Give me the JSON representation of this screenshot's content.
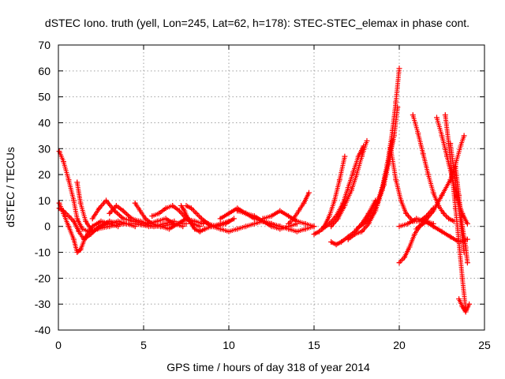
{
  "chart_data": {
    "type": "scatter",
    "title": "dSTEC Iono. truth (yell, Lon=245, Lat=62, h=178): STEC-STEC_elemax in phase cont.",
    "xlabel": "GPS time / hours of day 318 of year 2014",
    "ylabel": "dSTEC  / TECUs",
    "xlim": [
      0,
      25
    ],
    "ylim": [
      -40,
      70
    ],
    "xticks": [
      0,
      5,
      10,
      15,
      20,
      25
    ],
    "yticks": [
      -40,
      -30,
      -20,
      -10,
      0,
      10,
      20,
      30,
      40,
      50,
      60,
      70
    ],
    "grid": true,
    "legend": "none",
    "marker": "plus",
    "color": "#ff0000",
    "series": [
      {
        "x": [
          0.05,
          0.3,
          0.6,
          0.9,
          1.1,
          1.4,
          1.8,
          2.3,
          3.0,
          3.8,
          4.5,
          5.3,
          6.0,
          6.8,
          7.5
        ],
        "y": [
          29,
          25,
          18,
          10,
          3,
          -1,
          -2,
          -1,
          0,
          1,
          1,
          0,
          0,
          1,
          1
        ]
      },
      {
        "x": [
          0.05,
          0.3,
          0.6,
          0.9,
          1.1,
          1.3,
          1.6,
          2.0,
          2.5,
          3.0,
          3.5
        ],
        "y": [
          9,
          5,
          0,
          -5,
          -10,
          -9,
          -4,
          0,
          2,
          1,
          0
        ]
      },
      {
        "x": [
          0.05,
          0.3,
          0.6,
          0.9,
          1.2,
          1.5,
          1.9,
          2.4,
          3.0,
          3.6,
          4.2
        ],
        "y": [
          7,
          6,
          4,
          2,
          -2,
          -5,
          -3,
          0,
          2,
          1,
          1
        ]
      },
      {
        "x": [
          1.1,
          1.3,
          1.6,
          2.0,
          2.5,
          3.0,
          3.5,
          4.0,
          4.5
        ],
        "y": [
          17,
          9,
          2,
          -2,
          0,
          1,
          2,
          1,
          0
        ]
      },
      {
        "x": [
          2.0,
          2.4,
          2.8,
          3.3,
          3.8,
          4.4,
          5.0,
          5.6,
          6.2,
          6.8
        ],
        "y": [
          3,
          7,
          10,
          6,
          3,
          2,
          1,
          0,
          1,
          2
        ]
      },
      {
        "x": [
          3.0,
          3.4,
          3.8,
          4.3,
          4.8,
          5.3,
          5.8,
          6.3,
          6.8,
          7.3
        ],
        "y": [
          5,
          8,
          6,
          3,
          2,
          1,
          2,
          3,
          1,
          0
        ]
      },
      {
        "x": [
          4.5,
          4.8,
          5.1,
          5.5,
          6.0,
          6.5,
          7.0,
          7.5,
          8.0,
          8.5
        ],
        "y": [
          9,
          6,
          3,
          1,
          0,
          -1,
          1,
          3,
          2,
          1
        ]
      },
      {
        "x": [
          5.5,
          5.9,
          6.3,
          6.7,
          7.1,
          7.5,
          7.9,
          8.3
        ],
        "y": [
          4,
          5,
          7,
          8,
          6,
          3,
          1,
          0
        ]
      },
      {
        "x": [
          7.2,
          7.4,
          7.6,
          7.8,
          8.0,
          8.3,
          8.6,
          9.0,
          9.5,
          10.0
        ],
        "y": [
          8,
          6,
          3,
          1,
          -1,
          -2,
          -1,
          0,
          1,
          2
        ]
      },
      {
        "x": [
          7.5,
          7.8,
          8.1,
          8.4,
          8.8,
          9.3,
          9.8,
          10.3
        ],
        "y": [
          8,
          7,
          5,
          3,
          1,
          0,
          1,
          3
        ]
      },
      {
        "x": [
          8.5,
          9.0,
          9.5,
          10.0,
          10.5,
          11.0,
          11.5,
          12.0,
          12.5
        ],
        "y": [
          2,
          0,
          -1,
          -2,
          -1,
          0,
          1,
          2,
          1
        ]
      },
      {
        "x": [
          9.5,
          10.0,
          10.5,
          11.0,
          11.5,
          12.0,
          12.5,
          13.0
        ],
        "y": [
          3,
          5,
          7,
          5,
          3,
          2,
          1,
          0
        ]
      },
      {
        "x": [
          10.5,
          11.0,
          11.5,
          12.0,
          12.5,
          13.0,
          13.5,
          14.0
        ],
        "y": [
          6,
          5,
          4,
          2,
          0,
          -1,
          0,
          1
        ]
      },
      {
        "x": [
          12.0,
          12.5,
          13.0,
          13.5,
          14.0,
          14.5,
          15.0
        ],
        "y": [
          3,
          4,
          6,
          4,
          2,
          1,
          0
        ]
      },
      {
        "x": [
          12.5,
          13.0,
          13.5,
          14.0,
          14.5,
          15.0
        ],
        "y": [
          1,
          0,
          -1,
          -2,
          -1,
          0
        ]
      },
      {
        "x": [
          13.5,
          13.8,
          14.1,
          14.4,
          14.7
        ],
        "y": [
          1,
          3,
          6,
          9,
          13
        ]
      },
      {
        "x": [
          15.0,
          15.3,
          15.6,
          15.9,
          16.2,
          16.5,
          16.8
        ],
        "y": [
          -3,
          -2,
          0,
          4,
          10,
          18,
          27
        ]
      },
      {
        "x": [
          15.5,
          15.9,
          16.3,
          16.7,
          17.0,
          17.3,
          17.6,
          17.9
        ],
        "y": [
          -1,
          1,
          4,
          9,
          15,
          21,
          27,
          31
        ]
      },
      {
        "x": [
          16.0,
          16.4,
          16.8,
          17.2,
          17.5,
          17.8,
          18.1
        ],
        "y": [
          0,
          3,
          8,
          14,
          20,
          27,
          33
        ]
      },
      {
        "x": [
          16.0,
          16.3,
          16.6,
          17.0,
          17.4,
          17.8,
          18.2,
          18.6
        ],
        "y": [
          -6,
          -7,
          -6,
          -4,
          -2,
          1,
          5,
          10
        ]
      },
      {
        "x": [
          17.0,
          17.4,
          17.8,
          18.2,
          18.6,
          19.0,
          19.3,
          19.6,
          19.8,
          20.0
        ],
        "y": [
          -5,
          -3,
          -2,
          1,
          6,
          14,
          24,
          37,
          48,
          61
        ]
      },
      {
        "x": [
          17.5,
          17.9,
          18.3,
          18.7,
          19.1,
          19.4,
          19.7,
          19.9
        ],
        "y": [
          -1,
          1,
          3,
          8,
          16,
          25,
          35,
          46
        ]
      },
      {
        "x": [
          18.0,
          18.3,
          18.7,
          19.0,
          19.3,
          19.6
        ],
        "y": [
          2,
          5,
          9,
          15,
          24,
          33
        ]
      },
      {
        "x": [
          19.5,
          19.8,
          20.1,
          20.4,
          20.8,
          21.2,
          21.6,
          22.0
        ],
        "y": [
          30,
          18,
          10,
          5,
          2,
          2,
          4,
          7
        ]
      },
      {
        "x": [
          20.0,
          20.3,
          20.6,
          20.9,
          21.2,
          21.6,
          22.0
        ],
        "y": [
          -14,
          -12,
          -8,
          -3,
          0,
          2,
          1
        ]
      },
      {
        "x": [
          20.8,
          21.1,
          21.4,
          21.7,
          22.0,
          22.3,
          22.6,
          22.9,
          23.2
        ],
        "y": [
          43,
          36,
          28,
          20,
          13,
          8,
          5,
          3,
          2
        ]
      },
      {
        "x": [
          22.2,
          22.5,
          22.8,
          23.1,
          23.4,
          23.7,
          24.0
        ],
        "y": [
          42,
          35,
          27,
          19,
          11,
          5,
          1
        ]
      },
      {
        "x": [
          22.7,
          22.9,
          23.1,
          23.3,
          23.5,
          23.7,
          23.9
        ],
        "y": [
          43,
          32,
          20,
          7,
          -6,
          -20,
          -32
        ]
      },
      {
        "x": [
          23.0,
          23.2,
          23.4,
          23.6,
          23.8
        ],
        "y": [
          32,
          22,
          12,
          2,
          -10
        ]
      },
      {
        "x": [
          23.3,
          23.5,
          23.7,
          23.9,
          24.0
        ],
        "y": [
          23,
          12,
          0,
          -8,
          -14
        ]
      },
      {
        "x": [
          21.0,
          21.5,
          22.0,
          22.5,
          23.0,
          23.3,
          23.6,
          23.8
        ],
        "y": [
          -1,
          2,
          6,
          12,
          18,
          24,
          31,
          35
        ]
      },
      {
        "x": [
          20.0,
          20.5,
          21.0,
          21.5,
          22.0,
          22.5,
          23.0,
          23.5,
          24.0
        ],
        "y": [
          0,
          1,
          3,
          2,
          0,
          -2,
          -4,
          -6,
          -5
        ]
      },
      {
        "x": [
          23.5,
          23.7,
          23.9,
          24.1
        ],
        "y": [
          -28,
          -31,
          -33,
          -30
        ]
      }
    ]
  }
}
